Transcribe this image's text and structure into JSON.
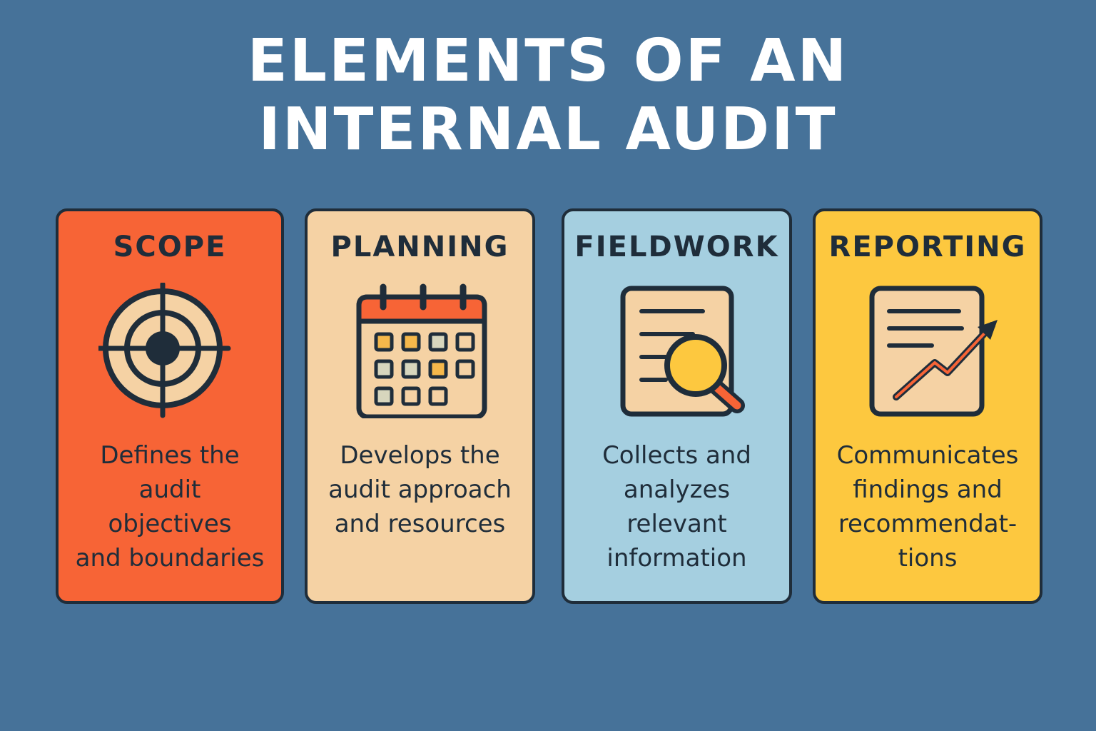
{
  "title": {
    "line1": "ELEMENTS OF AN",
    "line2": "INTERNAL AUDIT"
  },
  "colors": {
    "background": "#467299",
    "outline": "#1f2d3a",
    "scope": "#f76436",
    "planning": "#f5d2a4",
    "fieldwork": "#a5cfe0",
    "reporting": "#fdc83f"
  },
  "cards": [
    {
      "title": "SCOPE",
      "icon": "target-icon",
      "description": "Defines the\naudit\nobjectives\nand boundaries"
    },
    {
      "title": "PLANNING",
      "icon": "calendar-icon",
      "description": "Develops the\naudit approach\nand resources"
    },
    {
      "title": "FIELDWORK",
      "icon": "document-magnifier-icon",
      "description": "Collects and\nanalyzes\nrelevant\ninformation"
    },
    {
      "title": "REPORTING",
      "icon": "report-growth-icon",
      "description": "Communicates\nfindings and\nrecommendat-\ntions"
    }
  ]
}
